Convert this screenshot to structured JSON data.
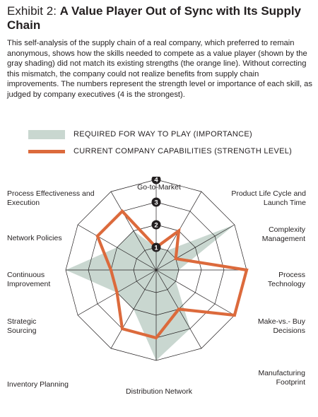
{
  "header": {
    "exhibit": "Exhibit 2:",
    "title": "A Value Player Out of Sync with Its Supply Chain",
    "description": "This self-analysis of the supply chain of a real company, which preferred to remain anonymous, shows how the skills needed to compete as a value player (shown by the gray shading) did not match its existing strengths (the orange line). Without correcting this mismatch, the company could not realize benefits from supply chain improvements. The numbers represent the strength level or importance of each skill, as judged by company executives (4 is the strongest)."
  },
  "legend": {
    "required": "REQUIRED FOR WAY TO PLAY (IMPORTANCE)",
    "current": "CURRENT COMPANY CAPABILITIES (STRENGTH LEVEL)"
  },
  "colors": {
    "fill": "#c9d7d0",
    "line": "#dc6a3c",
    "grid": "#231f20",
    "text": "#231f20"
  },
  "chart_data": {
    "type": "radar",
    "rmax": 4,
    "ticks": [
      "1",
      "2",
      "3",
      "4"
    ],
    "axes": [
      "Go-to-Market",
      "Product Life Cycle and Launch Time",
      "Complexity Management",
      "Process Technology",
      "Make-vs.- Buy Decisions",
      "Manufacturing Footprint",
      "Distribution Network",
      "Inventory Planning",
      "Strategic Sourcing",
      "Continuous Improvement",
      "Network Policies",
      "Process Effectiveness and Execution"
    ],
    "series": [
      {
        "values": [
          1,
          1,
          4,
          1,
          1,
          3,
          4,
          2,
          2,
          4,
          2,
          2
        ]
      },
      {
        "values": [
          1,
          2,
          1,
          4,
          4,
          2,
          3,
          3,
          2,
          2,
          3,
          3
        ]
      }
    ]
  }
}
